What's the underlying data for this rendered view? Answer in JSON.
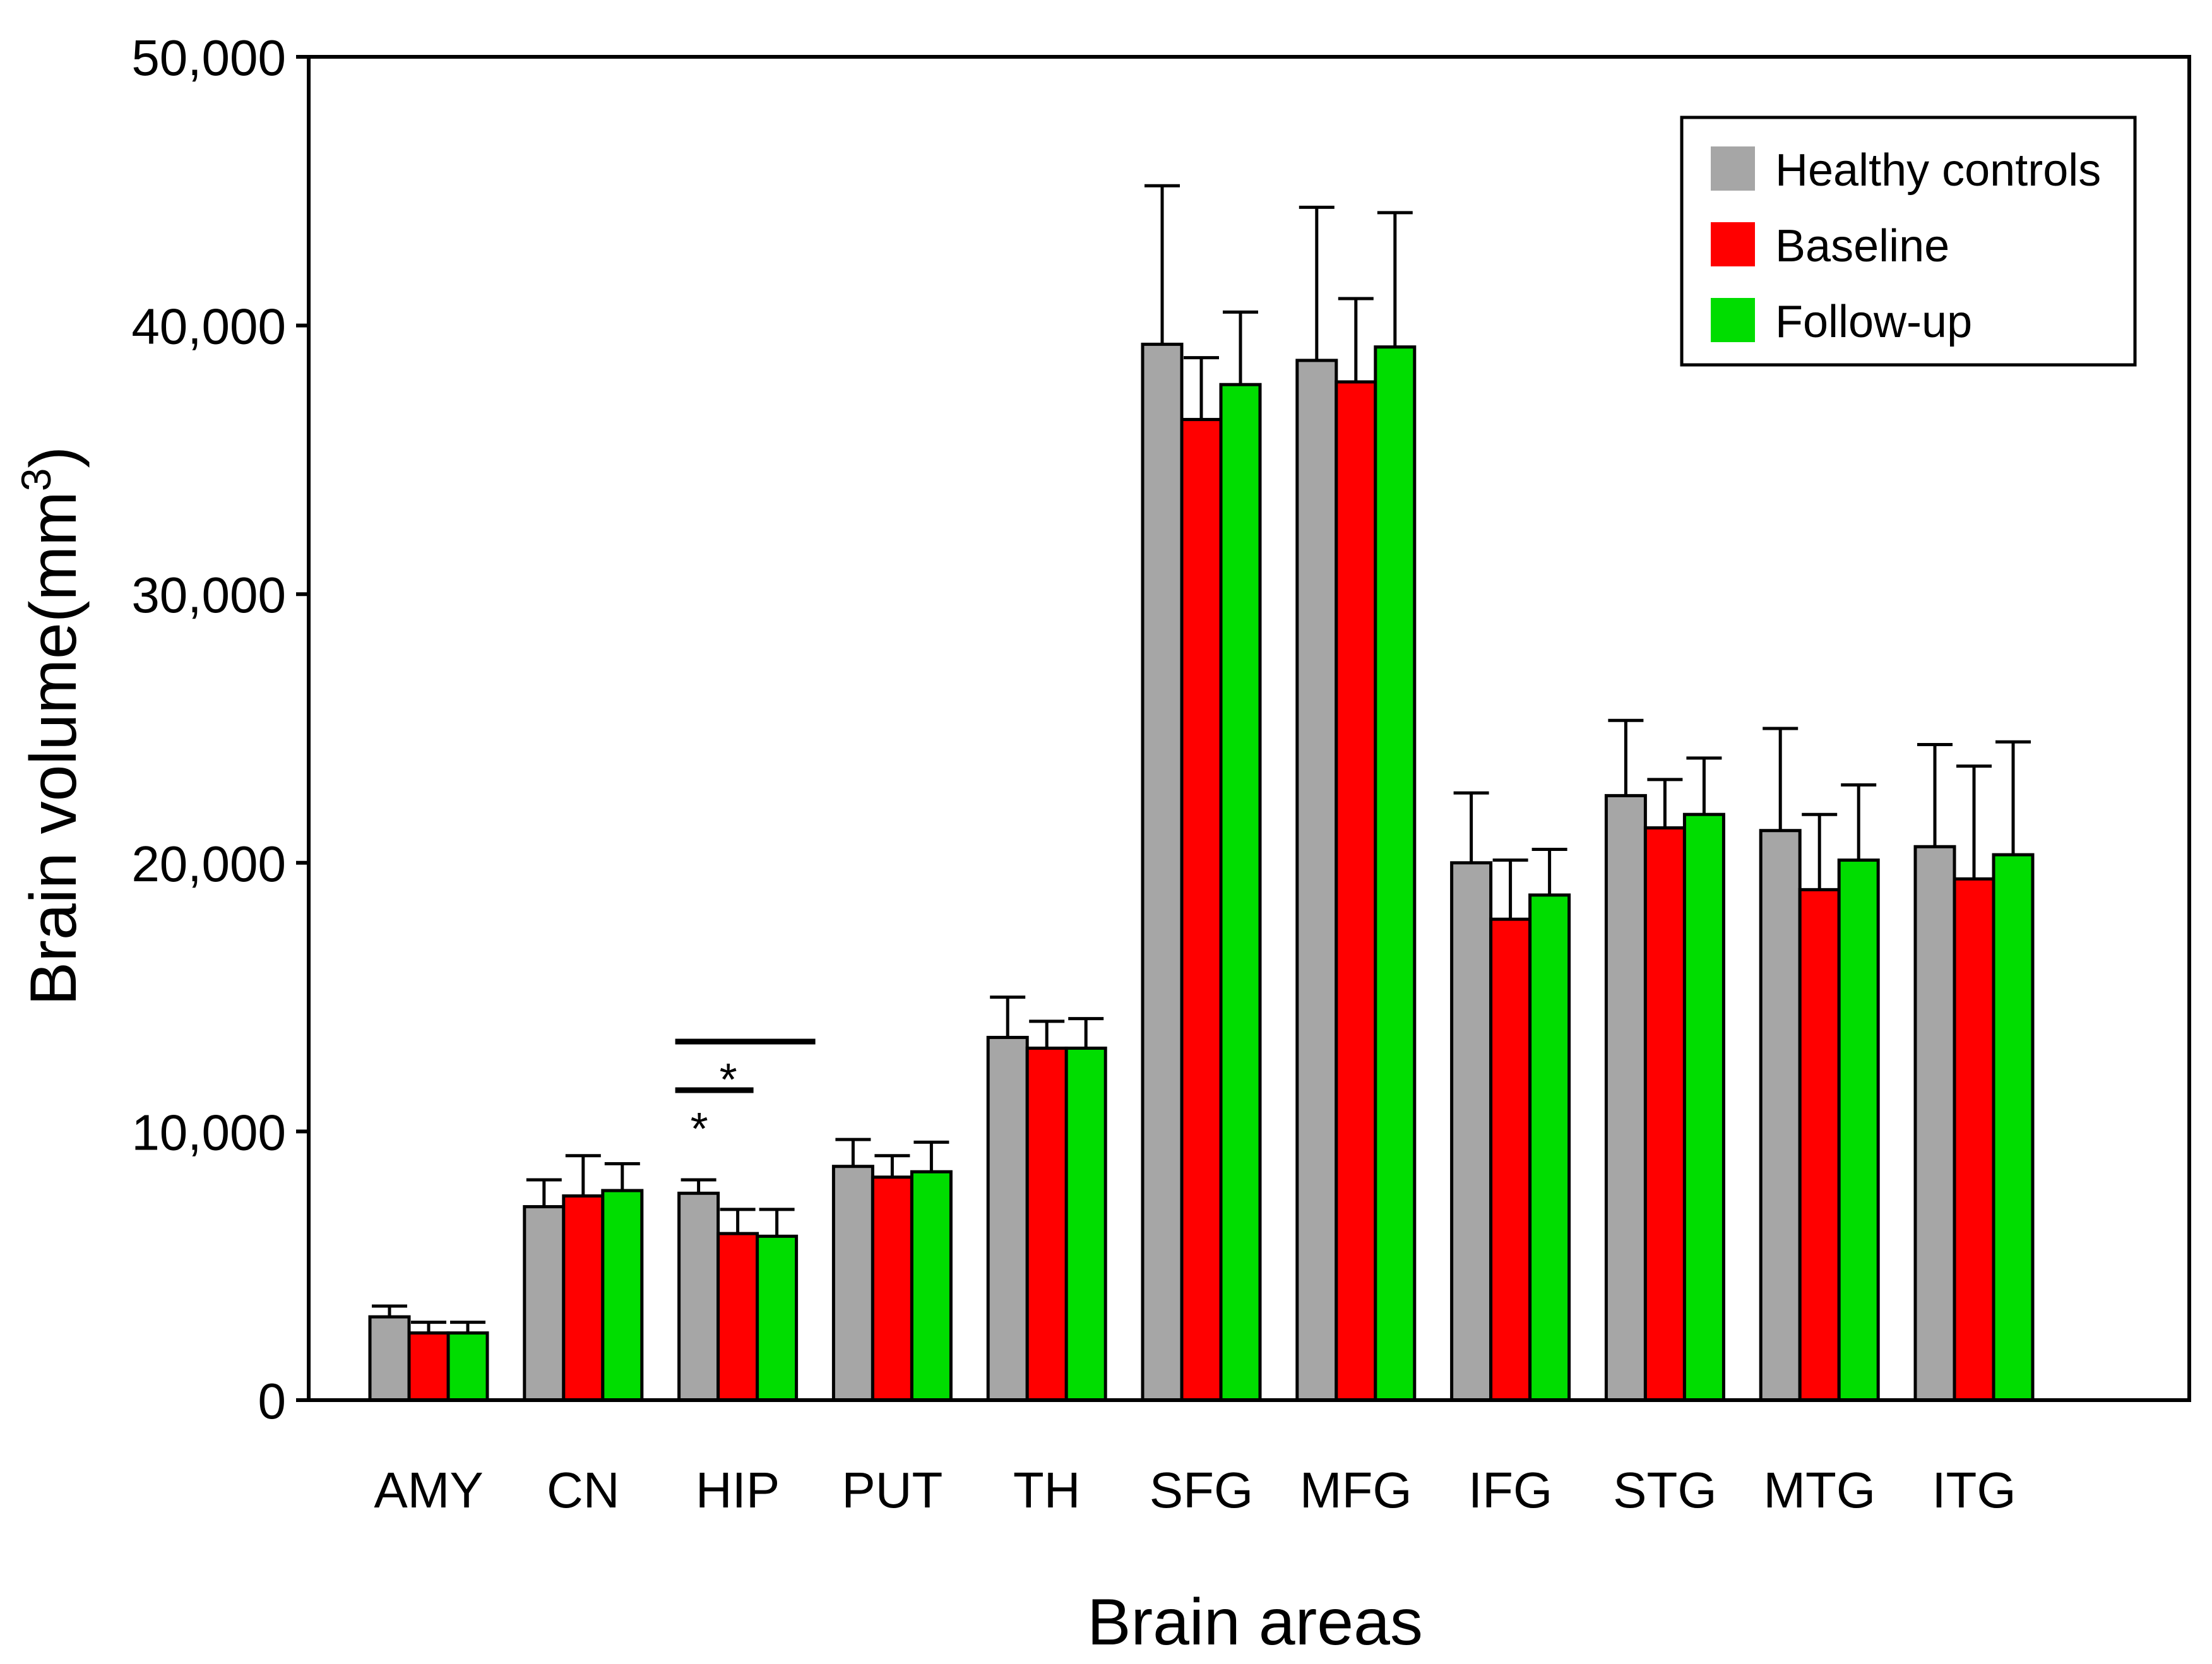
{
  "chart_data": {
    "type": "bar",
    "title": "",
    "xlabel": "Brain areas",
    "ylabel": "Brain volume(mm",
    "ylabel_superscript": "3",
    "ylabel_close": ")",
    "ylim": [
      0,
      50000
    ],
    "yticks": [
      0,
      10000,
      20000,
      30000,
      40000,
      50000
    ],
    "ytick_labels": [
      "0",
      "10,000",
      "20,000",
      "30,000",
      "40,000",
      "50,000"
    ],
    "categories": [
      "AMY",
      "CN",
      "HIP",
      "PUT",
      "TH",
      "SFG",
      "MFG",
      "IFG",
      "STG",
      "MTG",
      "ITG"
    ],
    "series": [
      {
        "name": "Healthy controls",
        "color": "#a6a6a6",
        "values": [
          3100,
          7200,
          7700,
          8700,
          13500,
          39300,
          38700,
          20000,
          22500,
          21200,
          20600
        ],
        "errors": [
          400,
          1000,
          500,
          1000,
          1500,
          5900,
          5700,
          2600,
          2800,
          3800,
          3800
        ]
      },
      {
        "name": "Baseline",
        "color": "#ff0000",
        "values": [
          2500,
          7600,
          6200,
          8300,
          13100,
          36500,
          37900,
          17900,
          21300,
          19000,
          19400
        ],
        "errors": [
          400,
          1500,
          900,
          800,
          1000,
          2300,
          3100,
          2200,
          1800,
          2800,
          4200
        ]
      },
      {
        "name": "Follow-up",
        "color": "#00dd00",
        "values": [
          2500,
          7800,
          6100,
          8500,
          13100,
          37800,
          39200,
          18800,
          21800,
          20100,
          20300
        ],
        "errors": [
          400,
          1000,
          1000,
          1100,
          1100,
          2700,
          5000,
          1700,
          2100,
          2800,
          4200
        ]
      }
    ],
    "legend_position": "top-right",
    "annotations": [
      {
        "category": "HIP",
        "between": [
          "Healthy controls",
          "Baseline"
        ],
        "label": "*"
      },
      {
        "category": "HIP",
        "between": [
          "Healthy controls",
          "Follow-up"
        ],
        "label": "*"
      }
    ]
  }
}
